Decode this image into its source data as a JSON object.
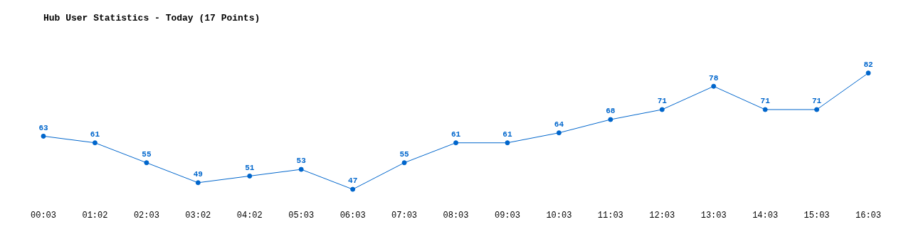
{
  "chart_data": {
    "type": "line",
    "title": "Hub User Statistics - Today (17 Points)",
    "categories": [
      "00:03",
      "01:02",
      "02:03",
      "03:02",
      "04:02",
      "05:03",
      "06:03",
      "07:03",
      "08:03",
      "09:03",
      "10:03",
      "11:03",
      "12:03",
      "13:03",
      "14:03",
      "15:03",
      "16:03"
    ],
    "series": [
      {
        "color": "#0066cc",
        "values": [
          63,
          61,
          55,
          49,
          51,
          53,
          47,
          55,
          61,
          61,
          64,
          68,
          71,
          78,
          71,
          71,
          82
        ]
      }
    ],
    "data_labels": true,
    "marker": "circle",
    "line_style": "solid",
    "grid": false,
    "legend": false
  }
}
